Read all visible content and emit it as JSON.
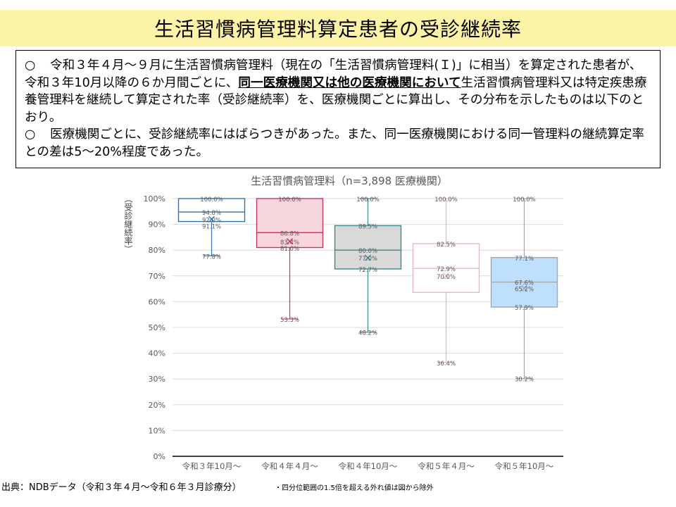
{
  "header": {
    "title": "生活習慣病管理料算定患者の受診継続率"
  },
  "summary": {
    "bullet_char": "○",
    "p1_before": "令和３年４月～９月に生活習慣病管理料（現在の「生活習慣病管理料(Ｉ)」に相当）を算定された患者が、令和３年10月以降の６か月間ごとに、",
    "p1_emph": "同一医療機関又は他の医療機関において",
    "p1_after": "生活習慣病管理料又は特定疾患療養管理料を継続して算定された率（受診継続率）を、医療機関ごとに算出し、その分布を示したものは以下のとおり。",
    "p2": "医療機関ごとに、受診継続率にはばらつきがあった。また、同一医療機関における同一管理料の継続算定率との差は5～20%程度であった。"
  },
  "chart_data": {
    "type": "box",
    "title": "生活習慣病管理料（n=3,898 医療機関）",
    "ylabel": "（受診継続率）",
    "ylim": [
      0,
      100
    ],
    "yticks": [
      "0%",
      "10%",
      "20%",
      "30%",
      "40%",
      "50%",
      "60%",
      "70%",
      "80%",
      "90%",
      "100%"
    ],
    "grid": true,
    "categories": [
      "令和３年10月～",
      "令和４年４月～",
      "令和４年10月～",
      "令和５年４月～",
      "令和５年10月～"
    ],
    "boxes": [
      {
        "max": 100.0,
        "q3": 100.0,
        "median": 94.8,
        "mean": 92.0,
        "q1": 91.1,
        "min": 77.8,
        "labels": [
          "100.0%",
          "94.8%",
          "92.0%",
          "91.1%",
          "77.8%"
        ],
        "stroke": "#2e74b5",
        "fill": "#ffffff"
      },
      {
        "max": 100.0,
        "q3": 100.0,
        "median": 86.8,
        "mean": 83.4,
        "q1": 81.0,
        "min": 53.3,
        "labels": [
          "100.0%",
          "86.8%",
          "83.4%",
          "81.0%",
          "53.3%"
        ],
        "stroke": "#c0395a",
        "fill": "#f6d5dd"
      },
      {
        "max": 100.0,
        "q3": 89.5,
        "median": 80.0,
        "mean": 77.0,
        "q1": 72.7,
        "min": 48.2,
        "labels": [
          "100.0%",
          "89.5%",
          "80.0%",
          "77.0%",
          "72.7%",
          "48.2%"
        ],
        "stroke": "#3a8a8c",
        "fill": "#d9d9d9"
      },
      {
        "max": 100.0,
        "q3": 82.5,
        "median": 72.9,
        "mean": 70.0,
        "q1": 63.6,
        "min": 36.4,
        "labels": [
          "100.0%",
          "82.5%",
          "72.9%",
          "70.0%",
          "36.4%"
        ],
        "stroke": "#e6b8c0",
        "fill": "#ffffff"
      },
      {
        "max": 100.0,
        "q3": 77.1,
        "median": 67.6,
        "mean": 65.2,
        "q1": 57.9,
        "min": 30.2,
        "labels": [
          "100.0%",
          "77.1%",
          "67.6%",
          "65.2%",
          "57.9%",
          "30.2%"
        ],
        "stroke": "#a6a6a6",
        "fill": "#bfdfff"
      }
    ]
  },
  "footer": {
    "source": "出典：NDBデータ（令和３年４月～令和６年３月診療分）",
    "note": "・四分位範囲の1.5倍を超える外れ値は図から除外"
  }
}
